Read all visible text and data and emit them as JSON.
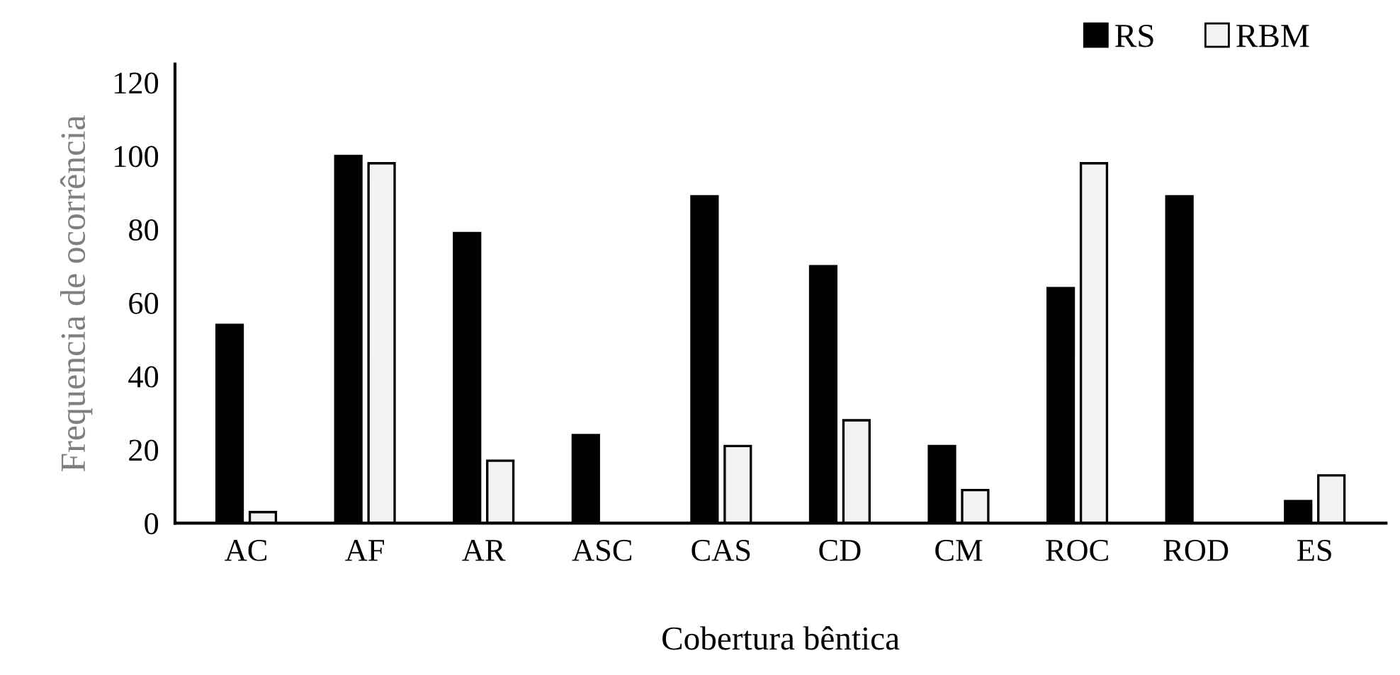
{
  "chart_data": {
    "type": "bar",
    "xlabel": "Cobertura bêntica",
    "ylabel": "Frequencia de ocorrência",
    "categories": [
      "AC",
      "AF",
      "AR",
      "ASC",
      "CAS",
      "CD",
      "CM",
      "ROC",
      "ROD",
      "ES"
    ],
    "series": [
      {
        "name": "RS",
        "color": "#000000",
        "values": [
          54,
          100,
          79,
          24,
          89,
          70,
          21,
          64,
          89,
          6
        ]
      },
      {
        "name": "RBM",
        "color": "#f2f2f2",
        "values": [
          3,
          98,
          17,
          null,
          21,
          28,
          9,
          98,
          null,
          13
        ]
      }
    ],
    "ylim": [
      0,
      125
    ],
    "yticks": [
      0,
      20,
      40,
      60,
      80,
      100,
      120
    ],
    "grid": false,
    "legend": "top right"
  }
}
